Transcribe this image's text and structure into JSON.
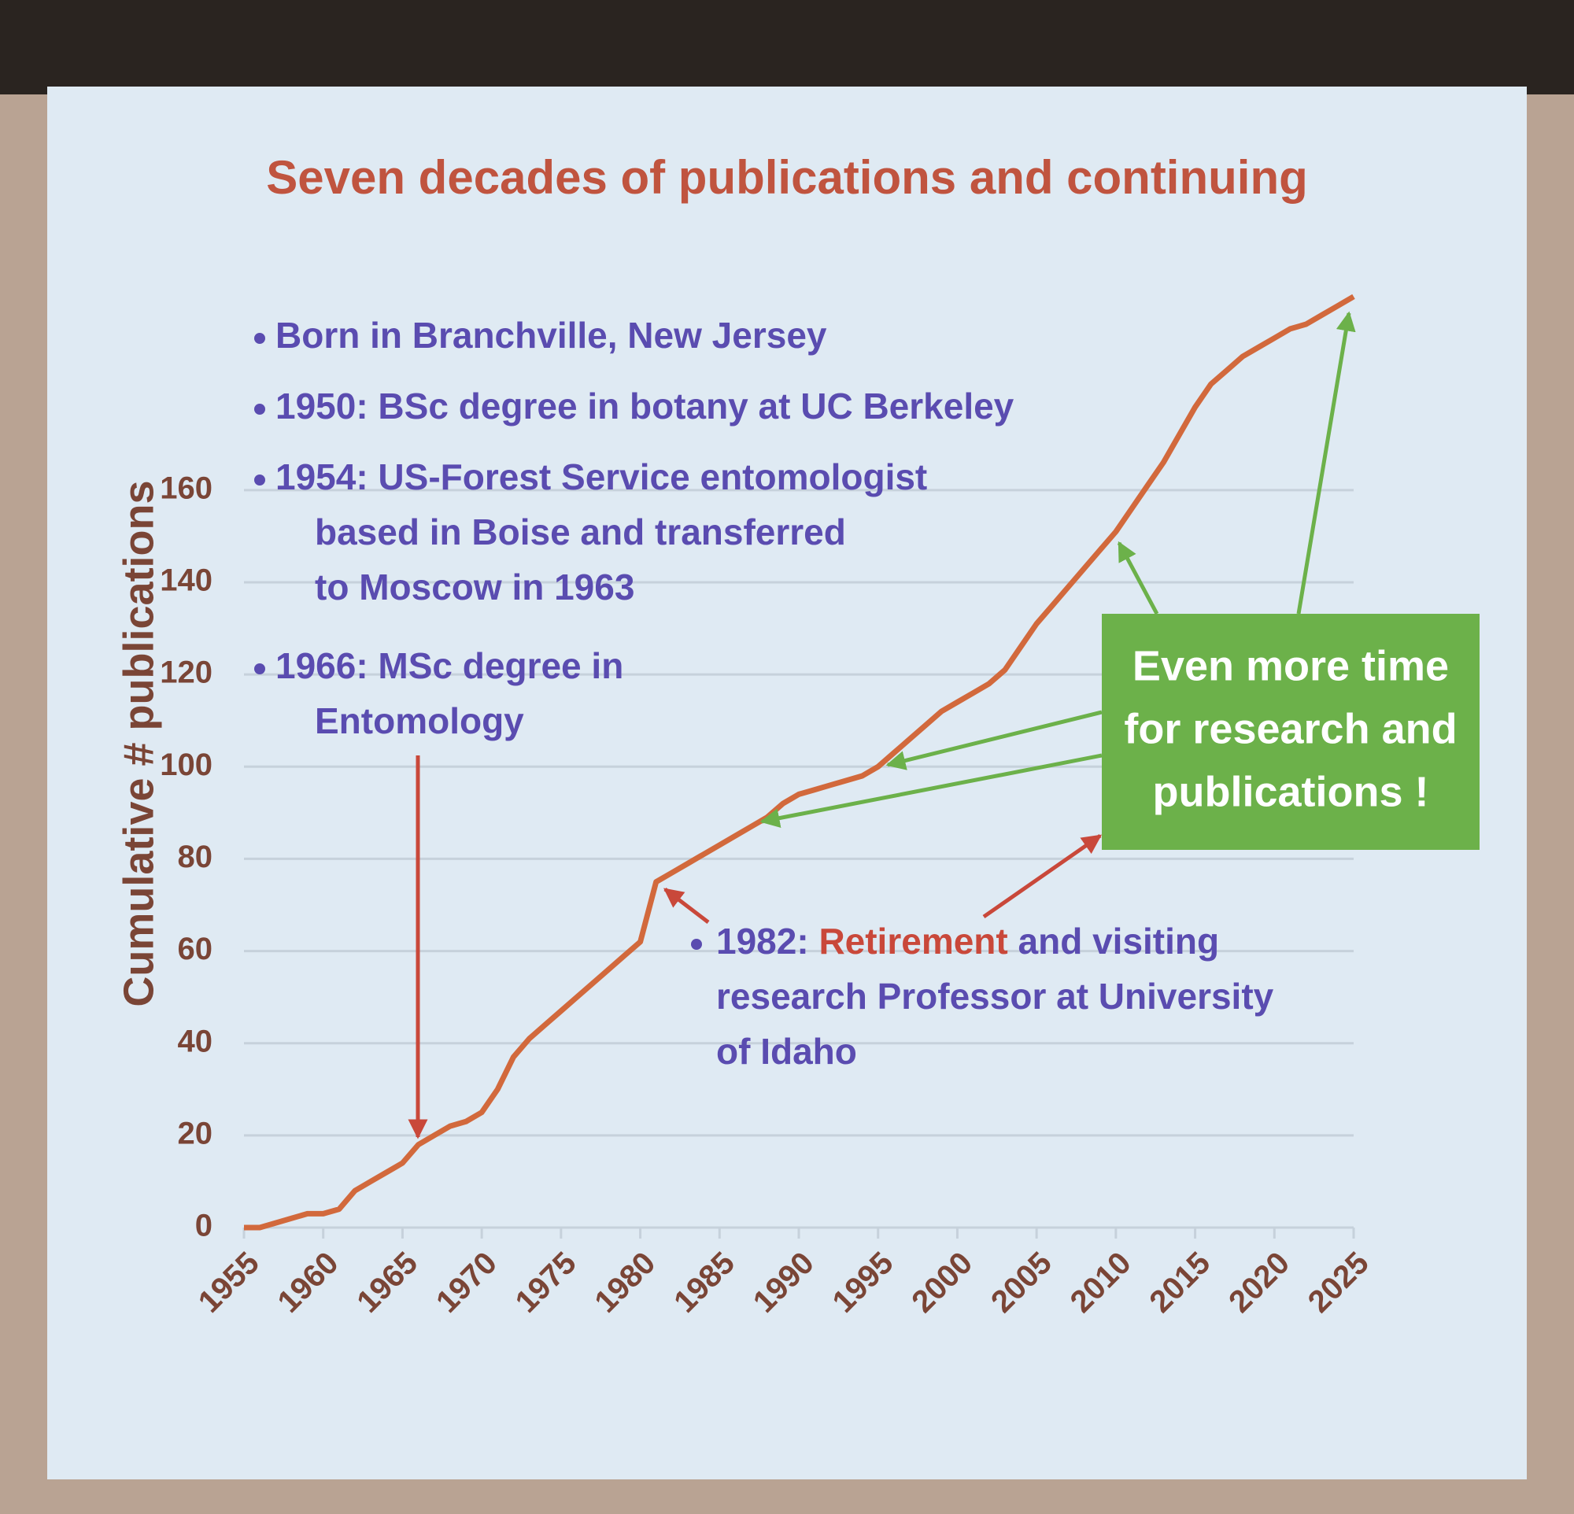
{
  "chart_data": {
    "type": "line",
    "title": "Seven decades of publications and continuing",
    "y_label": "Cumulative # publications",
    "x": [
      1955,
      1956,
      1957,
      1958,
      1959,
      1960,
      1961,
      1962,
      1963,
      1964,
      1965,
      1966,
      1967,
      1968,
      1969,
      1970,
      1971,
      1972,
      1973,
      1974,
      1975,
      1976,
      1977,
      1978,
      1979,
      1980,
      1981,
      1982,
      1983,
      1984,
      1985,
      1986,
      1987,
      1988,
      1989,
      1990,
      1991,
      1992,
      1993,
      1994,
      1995,
      1996,
      1997,
      1998,
      1999,
      2000,
      2001,
      2002,
      2003,
      2004,
      2005,
      2006,
      2007,
      2008,
      2009,
      2010,
      2011,
      2012,
      2013,
      2014,
      2015,
      2016,
      2017,
      2018,
      2019,
      2020,
      2021,
      2022,
      2023,
      2024,
      2025
    ],
    "values": [
      0,
      0,
      1,
      2,
      3,
      3,
      4,
      8,
      10,
      12,
      14,
      18,
      20,
      22,
      23,
      25,
      30,
      37,
      41,
      44,
      47,
      50,
      53,
      56,
      59,
      62,
      75,
      77,
      79,
      81,
      83,
      85,
      87,
      89,
      92,
      94,
      95,
      96,
      97,
      98,
      100,
      103,
      106,
      109,
      112,
      114,
      116,
      118,
      121,
      126,
      131,
      135,
      139,
      143,
      147,
      151,
      156,
      161,
      166,
      172,
      178,
      183,
      186,
      189,
      191,
      193,
      195,
      196,
      198,
      200,
      202
    ],
    "color": "#d2693c",
    "xlim": [
      1955,
      2025
    ],
    "xticks": [
      1955,
      1960,
      1965,
      1970,
      1975,
      1980,
      1985,
      1990,
      1995,
      2000,
      2005,
      2010,
      2015,
      2020,
      2025
    ],
    "ylim": [
      0,
      210
    ],
    "yticks": [
      0,
      20,
      40,
      60,
      80,
      100,
      120,
      140,
      160
    ],
    "grid": true,
    "annotations": {
      "bullets": [
        {
          "lines": [
            "Born in Branchville, New Jersey"
          ]
        },
        {
          "lines": [
            "1950: BSc degree in botany at UC Berkeley"
          ]
        },
        {
          "lines": [
            "1954: US-Forest Service entomologist",
            "based in Boise and transferred",
            "to Moscow in 1963"
          ]
        },
        {
          "lines": [
            "1966: MSc degree in",
            "Entomology"
          ]
        }
      ],
      "retirement": {
        "parts": [
          "1982: ",
          "Retirement",
          " and visiting"
        ],
        "lines": [
          "research Professor at University",
          "of Idaho"
        ]
      },
      "callout": {
        "lines": [
          "Even more time",
          "for research and",
          "publications !"
        ]
      }
    }
  }
}
